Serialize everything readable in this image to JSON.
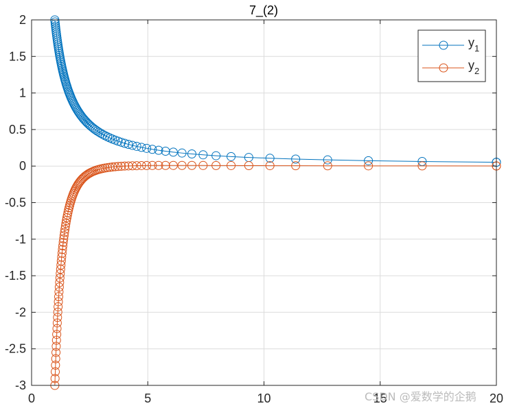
{
  "chart_data": {
    "type": "line",
    "title": "7_(2)",
    "xlabel": "",
    "ylabel": "",
    "xlim": [
      0,
      20
    ],
    "ylim": [
      -3,
      2
    ],
    "grid": true,
    "legend_position": "northeast",
    "x_ticks": [
      "0",
      "5",
      "10",
      "15",
      "20"
    ],
    "y_ticks": [
      "2",
      "1.5",
      "1",
      "0.5",
      "0",
      "-0.5",
      "-1",
      "-1.5",
      "-2",
      "-2.5",
      "-3"
    ],
    "series": [
      {
        "name": "y1",
        "color": "#0072BD",
        "marker": "circle",
        "x": [
          1,
          1.5,
          2,
          3,
          4,
          5,
          7,
          10,
          15,
          20
        ],
        "values": [
          2,
          1.11,
          0.75,
          0.44,
          0.31,
          0.24,
          0.16,
          0.11,
          0.07,
          0.05
        ]
      },
      {
        "name": "y2",
        "color": "#D95319",
        "marker": "circle",
        "x": [
          1,
          1.1,
          1.3,
          1.5,
          2,
          3,
          4,
          5,
          7,
          10,
          15,
          20
        ],
        "values": [
          -3,
          -2.1,
          -1.27,
          -0.74,
          -0.25,
          -0.04,
          0,
          0.01,
          0.01,
          0.01,
          0,
          0
        ]
      }
    ]
  },
  "title": "7_(2)",
  "legend": {
    "items": [
      {
        "label": "y",
        "sub": "1"
      },
      {
        "label": "y",
        "sub": "2"
      }
    ]
  },
  "watermark": "CSDN @爱数学的企鹅"
}
